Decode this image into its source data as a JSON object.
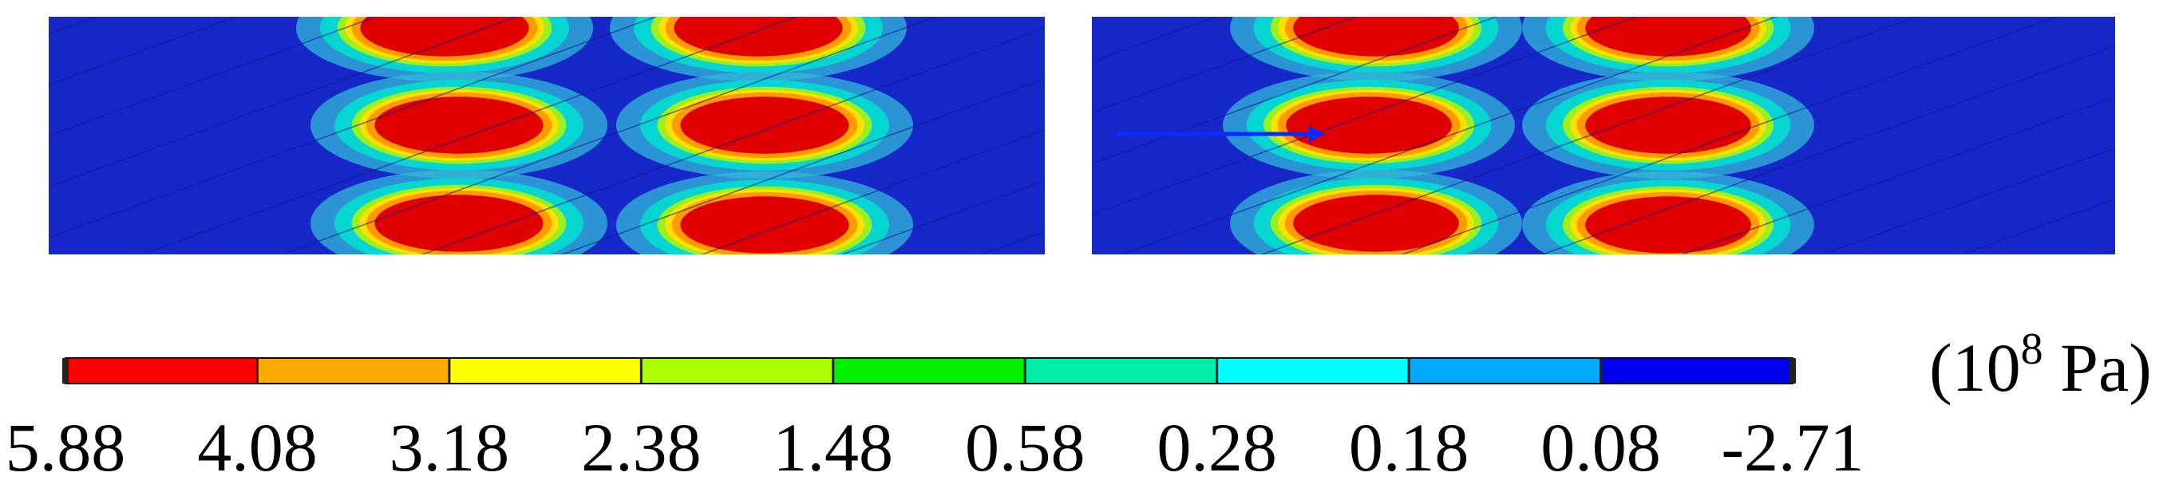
{
  "colorbar": {
    "labels": [
      "5.88",
      "4.08",
      "3.18",
      "2.38",
      "1.48",
      "0.58",
      "0.28",
      "0.18",
      "0.08",
      "-2.71"
    ],
    "colors": [
      "#ff0000",
      "#ffaa00",
      "#ffff00",
      "#aaff00",
      "#00ee00",
      "#00eeaa",
      "#00ffff",
      "#00aaff",
      "#0000ee"
    ],
    "unit": {
      "prefix": "(10",
      "exponent": "8",
      "suffix": " Pa)"
    }
  }
}
